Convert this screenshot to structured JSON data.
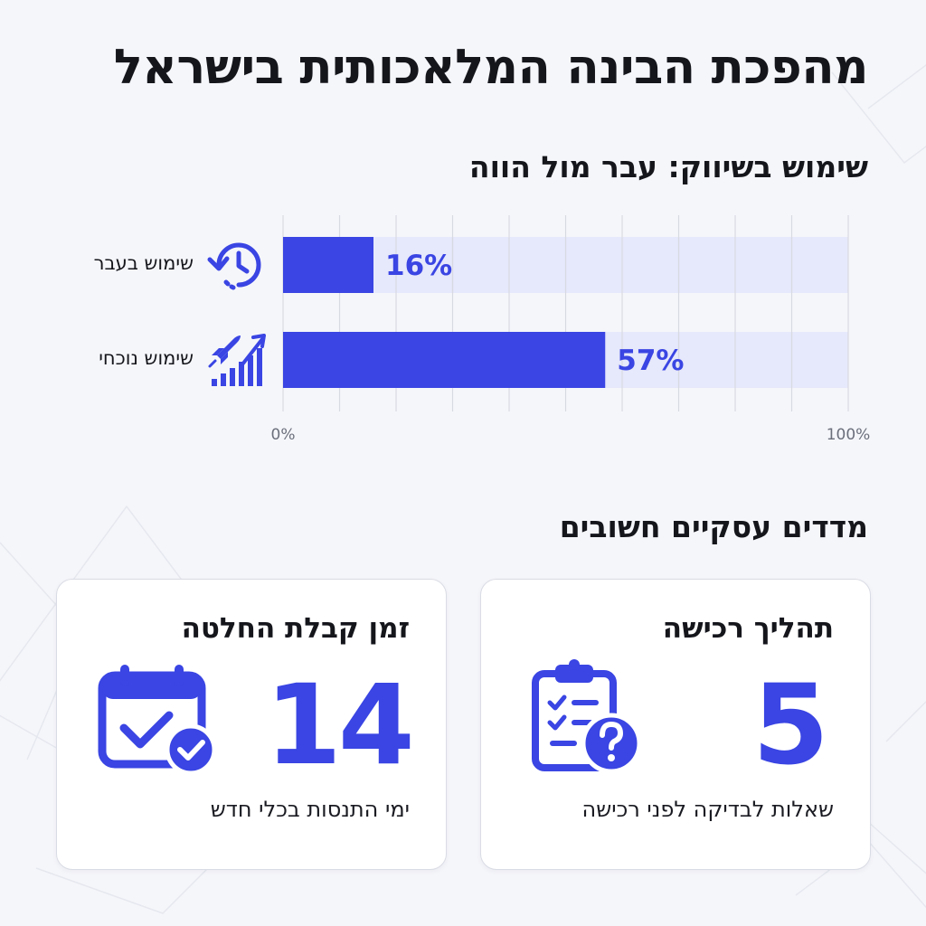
{
  "title": "מהפכת הבינה המלאכותית בישראל",
  "chart_section": {
    "title": "שימוש בשיווק: עבר מול הווה",
    "icons": [
      "history-clock-icon",
      "rocket-growth-icon"
    ]
  },
  "chart_data": {
    "type": "bar",
    "orientation": "horizontal",
    "categories": [
      "שימוש בעבר",
      "שימוש נוכחי"
    ],
    "values": [
      16,
      57
    ],
    "value_labels": [
      "16%",
      "57%"
    ],
    "xlim": [
      0,
      100
    ],
    "x_tick_labels": [
      "0%",
      "100%"
    ],
    "grid": true,
    "colors": {
      "bar": "#3a45e3",
      "track": "#e6e8fb",
      "grid": "#d8dae2"
    }
  },
  "metrics_section": {
    "title": "מדדים עסקיים חשובים",
    "cards": [
      {
        "title": "תהליך רכישה",
        "value": "5",
        "description": "שאלות לבדיקה לפני רכישה",
        "icon": "clipboard-question-icon"
      },
      {
        "title": "זמן קבלת החלטה",
        "value": "14",
        "description": "ימי התנסות בכלי חדש",
        "icon": "calendar-check-icon"
      }
    ]
  },
  "colors": {
    "accent": "#3a45e3",
    "background": "#f5f6fa",
    "text": "#15161c"
  }
}
